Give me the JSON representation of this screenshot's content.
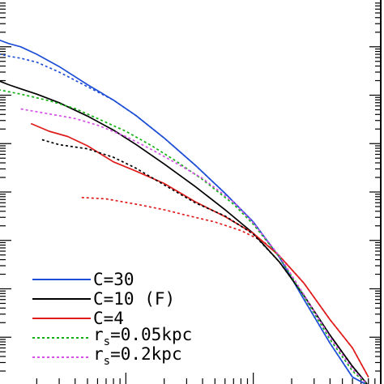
{
  "chart_data": {
    "type": "line",
    "xscale": "log",
    "yscale": "log",
    "xlim": [
      1,
      1000
    ],
    "ylim": [
      0.1,
      10000000
    ],
    "grid": false,
    "legend_position": "bottom-left",
    "series": [
      {
        "name": "C=30",
        "color": "#1f4fd6",
        "dash": "solid",
        "x": [
          1.0,
          1.2,
          1.5,
          2.0,
          3.0,
          5.0,
          8.0,
          12,
          20,
          35,
          60,
          100,
          160,
          250,
          400,
          600,
          800
        ],
        "y": [
          1400000.0,
          1170000.0,
          1000000.0,
          700000.0,
          390000.0,
          165000.0,
          79000.0,
          38000.0,
          13000.0,
          3600.0,
          940.0,
          240.0,
          45.0,
          6.0,
          0.75,
          0.15,
          0.1
        ]
      },
      {
        "name": "",
        "color": "#1f4fd6",
        "dash": "dotted",
        "x": [
          1.0,
          1.2,
          1.5,
          2.0,
          3.0,
          5.0,
          8.0,
          12,
          20,
          35,
          60,
          100,
          160,
          250,
          400,
          600,
          800
        ],
        "y": [
          720000.0,
          640000.0,
          580000.0,
          480000.0,
          300000.0,
          150000.0,
          79000.0,
          38000.0,
          13000.0,
          3600.0,
          940.0,
          240.0,
          45.0,
          6.0,
          0.75,
          0.15,
          0.1
        ]
      },
      {
        "name": "C=10 (F)",
        "color": "#000000",
        "dash": "solid",
        "x": [
          1.0,
          1.2,
          1.5,
          2.0,
          3.0,
          5.0,
          8.0,
          12,
          20,
          35,
          60,
          100,
          160,
          250,
          400,
          600,
          800
        ],
        "y": [
          200000.0,
          165000.0,
          135000.0,
          105000.0,
          70000.0,
          37000.0,
          19000.0,
          9600.0,
          3800.0,
          1300.0,
          430.0,
          140.0,
          36.0,
          7.2,
          1.1,
          0.25,
          0.1
        ]
      },
      {
        "name": "C=4",
        "color": "#e01b1b",
        "dash": "solid",
        "x": [
          1.8,
          2.5,
          3.5,
          5.0,
          8.0,
          12,
          20,
          35,
          60,
          100,
          160,
          250,
          400,
          600,
          800
        ],
        "y": [
          26000.0,
          18000.0,
          14000.0,
          9000.0,
          4200.0,
          2700.0,
          1500.0,
          630.0,
          310.0,
          140.0,
          48.0,
          13.0,
          2.3,
          0.6,
          0.15
        ]
      },
      {
        "name": "",
        "color": "#e01b1b",
        "dash": "dotted",
        "x": [
          4.5,
          7.0,
          12,
          20,
          30,
          50,
          80,
          120,
          160,
          250,
          400,
          600,
          800
        ],
        "y": [
          770.0,
          720.0,
          560.0,
          430.0,
          330.0,
          240.0,
          160.0,
          95.0,
          48.0,
          13.0,
          2.3,
          0.6,
          0.15
        ]
      },
      {
        "name": "",
        "color": "#000000",
        "dash": "dotted",
        "x": [
          2.2,
          3.0,
          5.0,
          8.0,
          12,
          20,
          35,
          60,
          100,
          160,
          250,
          400,
          600,
          800
        ],
        "y": [
          12000.0,
          9500.0,
          7800.0,
          5200.0,
          3100.0,
          1400.0,
          600.0,
          320.0,
          135.0,
          36.0,
          7.2,
          1.1,
          0.25,
          0.1
        ]
      },
      {
        "name": "r_s=0.05kpc",
        "color": "#11b011",
        "dash": "dotted",
        "x": [
          1.0,
          1.5,
          2.5,
          4.0,
          6.0,
          10,
          16,
          25,
          40,
          70,
          100,
          160,
          250,
          400,
          600,
          800
        ],
        "y": [
          130000.0,
          105000.0,
          77000.0,
          53000.0,
          33000.0,
          18000.0,
          9000.0,
          4300.0,
          1800.0,
          560.0,
          215.0,
          46.0,
          7.0,
          0.9,
          0.2,
          0.1
        ]
      },
      {
        "name": "r_s=0.2kpc",
        "color": "#d64ee8",
        "dash": "dotted",
        "x": [
          1.5,
          2.5,
          4.0,
          6.0,
          10,
          16,
          25,
          40,
          70,
          100,
          160,
          250,
          400,
          600,
          800
        ],
        "y": [
          52000.0,
          41000.0,
          33000.0,
          24000.0,
          14000.0,
          7500.0,
          3900.0,
          1900.0,
          620.0,
          230.0,
          48.0,
          7.5,
          1.0,
          0.22,
          0.1
        ]
      }
    ],
    "legend": [
      {
        "text": "C=30",
        "color": "#1f4fd6",
        "dash": "solid"
      },
      {
        "text": "C=10 (F)",
        "color": "#000000",
        "dash": "solid"
      },
      {
        "text": "C=4",
        "color": "#e01b1b",
        "dash": "solid"
      },
      {
        "main": "r",
        "sub": "s",
        "rest": "=0.05kpc",
        "color": "#11b011",
        "dash": "dotted"
      },
      {
        "main": "r",
        "sub": "s",
        "rest": "=0.2kpc",
        "color": "#d64ee8",
        "dash": "dotted"
      }
    ]
  }
}
